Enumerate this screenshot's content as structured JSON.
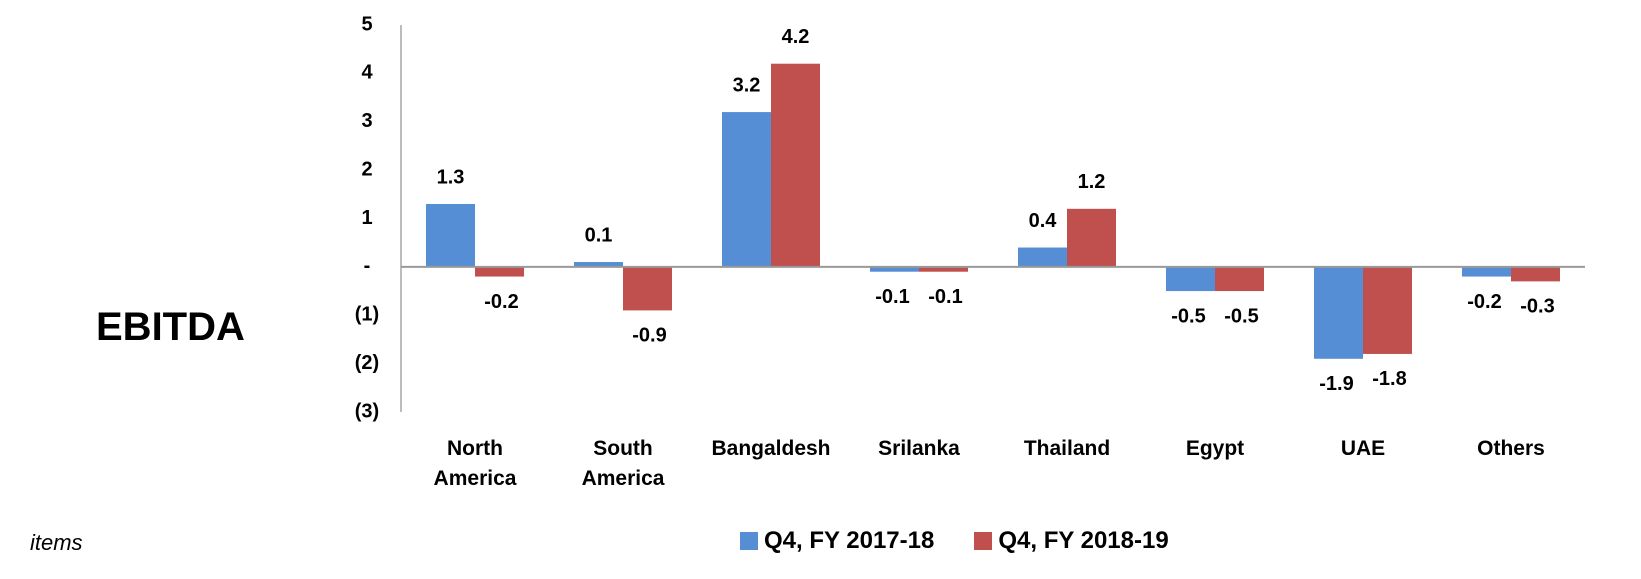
{
  "chart_data": {
    "type": "bar",
    "title": "EBITDA",
    "footnote": "items",
    "categories": [
      "North America",
      "South America",
      "Bangaldesh",
      "Srilanka",
      "Thailand",
      "Egypt",
      "UAE",
      "Others"
    ],
    "series": [
      {
        "name": "Q4, FY 2017-18",
        "color": "#558ed5",
        "values": [
          1.3,
          0.1,
          3.2,
          -0.1,
          0.4,
          -0.5,
          -1.9,
          -0.2
        ]
      },
      {
        "name": "Q4, FY 2018-19",
        "color": "#c0504d",
        "values": [
          -0.2,
          -0.9,
          4.2,
          -0.1,
          1.2,
          -0.5,
          -1.8,
          -0.3
        ]
      }
    ],
    "ylim": [
      -3,
      5
    ],
    "yticks": [
      5,
      4,
      3,
      2,
      1,
      {
        "value": 0,
        "label": "-"
      },
      {
        "value": -1,
        "label": "(1)"
      },
      {
        "value": -2,
        "label": "(2)"
      },
      {
        "value": -3,
        "label": "(3)"
      }
    ],
    "grid": false,
    "legend": "bottom"
  }
}
